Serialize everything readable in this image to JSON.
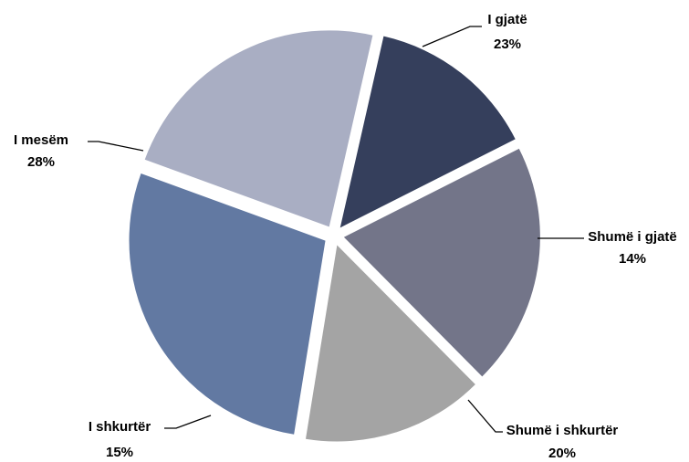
{
  "chart_data": {
    "type": "pie",
    "title": "",
    "legend": "none",
    "data_labels": "outside with leader lines",
    "categories": [
      "I gjatë",
      "Shumë i gjatë",
      "Shumë i shkurtër",
      "I shkurtër",
      "I mesëm"
    ],
    "values": [
      23,
      14,
      20,
      15,
      28
    ],
    "value_labels": [
      "23%",
      "14%",
      "20%",
      "15%",
      "28%"
    ],
    "colors": [
      "#a9aec3",
      "#353f5c",
      "#737589",
      "#a4a4a4",
      "#6279a2"
    ],
    "exploded": true
  }
}
